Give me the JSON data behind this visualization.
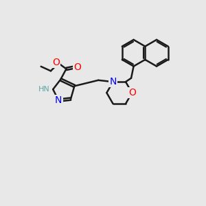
{
  "bg_color": "#e8e8e8",
  "bond_color": "#1a1a1a",
  "bond_width": 1.8,
  "atom_colors": {
    "N": "#0000ff",
    "O": "#ff0000",
    "C": "#1a1a1a",
    "H": "#5fa8a8"
  },
  "font_size": 9,
  "fig_width": 3.0,
  "fig_height": 3.0,
  "dpi": 100
}
